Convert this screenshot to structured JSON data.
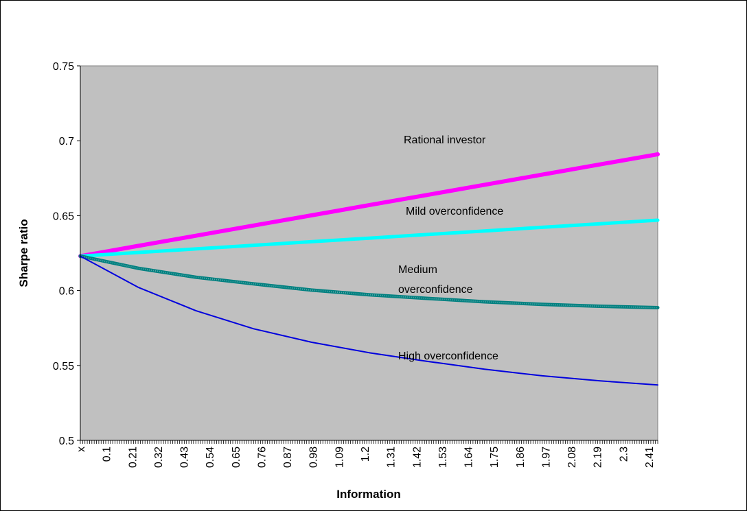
{
  "chart_data": {
    "type": "line",
    "title": "",
    "xlabel": "Information",
    "ylabel": "Sharpe ratio",
    "ylim": [
      0.5,
      0.75
    ],
    "yticks": [
      "0.5",
      "0.55",
      "0.6",
      "0.65",
      "0.7",
      "0.75"
    ],
    "xlim": [
      0,
      2.5
    ],
    "xticks": [
      "x",
      "0.1",
      "0.21",
      "0.32",
      "0.43",
      "0.54",
      "0.65",
      "0.76",
      "0.87",
      "0.98",
      "1.09",
      "1.2",
      "1.31",
      "1.42",
      "1.53",
      "1.64",
      "1.75",
      "1.86",
      "1.97",
      "2.08",
      "2.19",
      "2.3",
      "2.41"
    ],
    "grid": false,
    "plot_background": "#c0c0c0",
    "series": [
      {
        "name": "Rational investor",
        "color": "#ff00ff",
        "x": [
          0,
          0.25,
          0.5,
          0.75,
          1.0,
          1.25,
          1.5,
          1.75,
          2.0,
          2.25,
          2.5
        ],
        "values": [
          0.623,
          0.6298,
          0.6366,
          0.6434,
          0.6502,
          0.657,
          0.6638,
          0.6706,
          0.6774,
          0.6842,
          0.691
        ]
      },
      {
        "name": "Mild overconfidence",
        "color": "#00ffff",
        "x": [
          0,
          0.25,
          0.5,
          0.75,
          1.0,
          1.25,
          1.5,
          1.75,
          2.0,
          2.25,
          2.5
        ],
        "values": [
          0.623,
          0.6254,
          0.6278,
          0.6302,
          0.6326,
          0.635,
          0.6374,
          0.6398,
          0.6422,
          0.6446,
          0.647
        ]
      },
      {
        "name": "Medium overconfidence",
        "color": "#008080",
        "x": [
          0,
          0.25,
          0.5,
          0.75,
          1.0,
          1.25,
          1.5,
          1.75,
          2.0,
          2.25,
          2.5
        ],
        "values": [
          0.623,
          0.6149,
          0.6089,
          0.6045,
          0.6003,
          0.5972,
          0.5948,
          0.5925,
          0.5908,
          0.5895,
          0.5886
        ]
      },
      {
        "name": "High overconfidence",
        "color": "#0000dd",
        "x": [
          0,
          0.25,
          0.5,
          0.75,
          1.0,
          1.25,
          1.5,
          1.75,
          2.0,
          2.25,
          2.5
        ],
        "values": [
          0.623,
          0.6022,
          0.5866,
          0.5745,
          0.5655,
          0.5585,
          0.5528,
          0.5475,
          0.5431,
          0.5397,
          0.537
        ]
      }
    ],
    "annotations": [
      {
        "text": "Rational investor"
      },
      {
        "text": "Mild overconfidence"
      },
      {
        "text": "Medium"
      },
      {
        "text": "overconfidence"
      },
      {
        "text": "High overconfidence"
      }
    ]
  }
}
